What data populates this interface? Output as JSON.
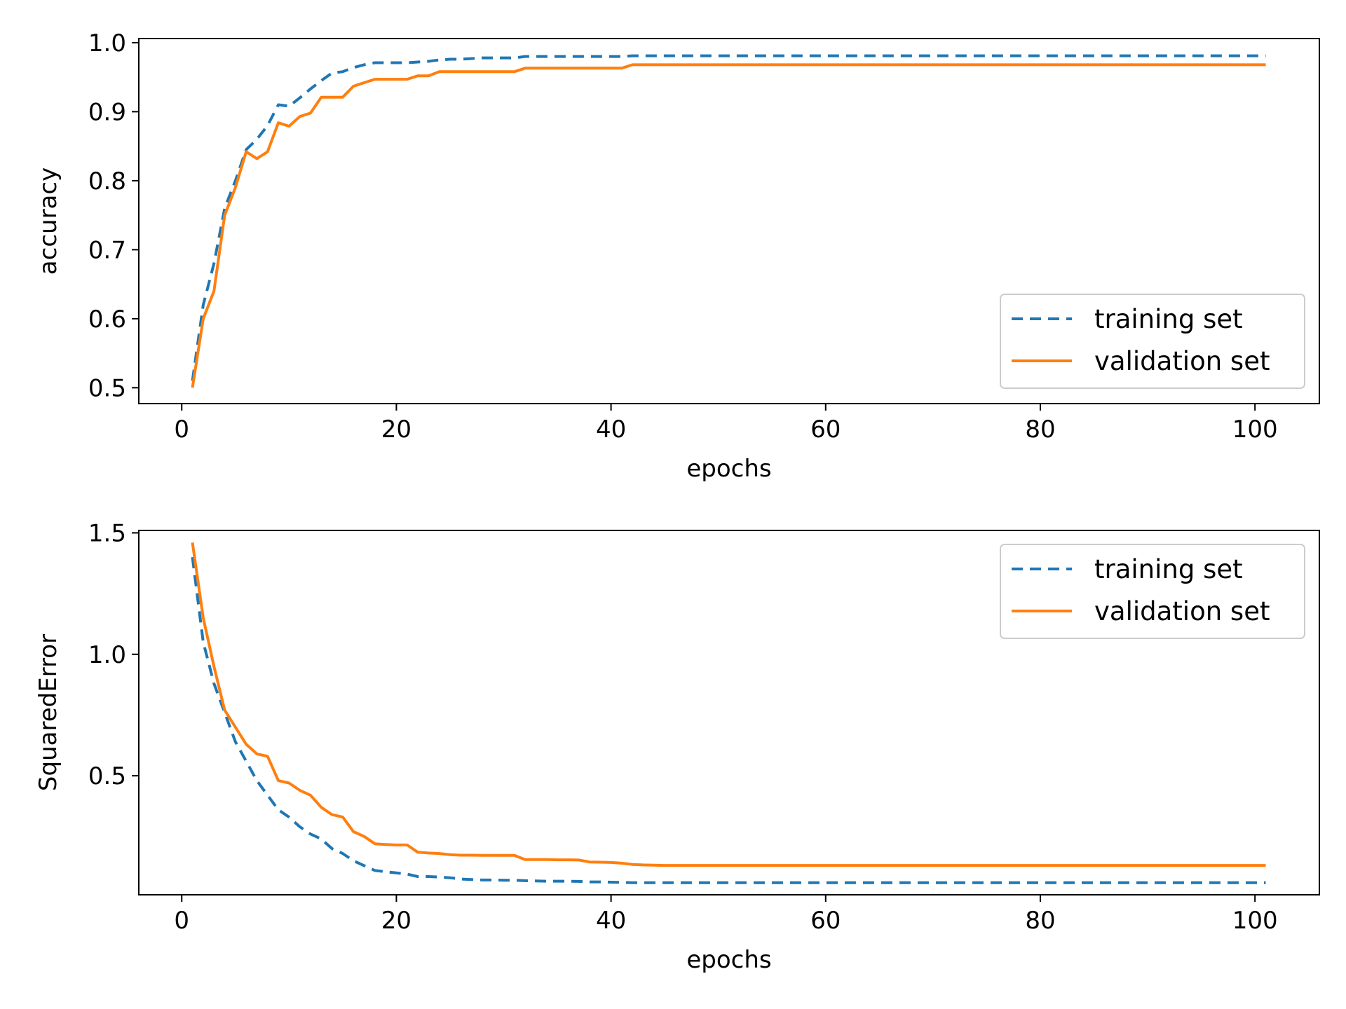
{
  "colors": {
    "training": "#1f77b4",
    "validation": "#ff7f0e"
  },
  "chart_data": [
    {
      "type": "line",
      "xlabel": "epochs",
      "ylabel": "accuracy",
      "xlim": [
        -4,
        106
      ],
      "ylim": [
        0.477,
        1.006
      ],
      "xticks": [
        0,
        20,
        40,
        60,
        80,
        100
      ],
      "xtick_labels": [
        "0",
        "20",
        "40",
        "60",
        "80",
        "100"
      ],
      "yticks": [
        0.5,
        0.6,
        0.7,
        0.8,
        0.9,
        1.0
      ],
      "ytick_labels": [
        "0.5",
        "0.6",
        "0.7",
        "0.8",
        "0.9",
        "1.0"
      ],
      "grid": false,
      "legend_position": "lower-right",
      "x": [
        1,
        2,
        3,
        4,
        5,
        6,
        7,
        8,
        9,
        10,
        11,
        12,
        13,
        14,
        15,
        16,
        17,
        18,
        19,
        20,
        21,
        22,
        23,
        24,
        25,
        26,
        27,
        28,
        29,
        30,
        31,
        32,
        33,
        34,
        35,
        36,
        37,
        38,
        39,
        40,
        41,
        42,
        43,
        44,
        45,
        46,
        47,
        48,
        49,
        50,
        51,
        52,
        53,
        54,
        55,
        56,
        57,
        58,
        59,
        60,
        61,
        62,
        63,
        64,
        65,
        66,
        67,
        68,
        69,
        70,
        71,
        72,
        73,
        74,
        75,
        76,
        77,
        78,
        79,
        80,
        81,
        82,
        83,
        84,
        85,
        86,
        87,
        88,
        89,
        90,
        91,
        92,
        93,
        94,
        95,
        96,
        97,
        98,
        99,
        100,
        101
      ],
      "series": [
        {
          "name": "training set",
          "style": "dashed",
          "values": [
            0.51,
            0.62,
            0.68,
            0.76,
            0.8,
            0.845,
            0.86,
            0.88,
            0.91,
            0.908,
            0.92,
            0.933,
            0.945,
            0.956,
            0.958,
            0.964,
            0.968,
            0.971,
            0.971,
            0.971,
            0.971,
            0.972,
            0.973,
            0.975,
            0.976,
            0.976,
            0.977,
            0.978,
            0.978,
            0.978,
            0.978,
            0.98,
            0.98,
            0.98,
            0.98,
            0.98,
            0.98,
            0.98,
            0.98,
            0.98,
            0.98,
            0.981,
            0.981,
            0.981,
            0.981,
            0.981,
            0.981,
            0.981,
            0.981,
            0.981,
            0.981,
            0.981,
            0.981,
            0.981,
            0.981,
            0.981,
            0.981,
            0.981,
            0.981,
            0.981,
            0.981,
            0.981,
            0.981,
            0.981,
            0.981,
            0.981,
            0.981,
            0.981,
            0.981,
            0.981,
            0.981,
            0.981,
            0.981,
            0.981,
            0.981,
            0.981,
            0.981,
            0.981,
            0.981,
            0.981,
            0.981,
            0.981,
            0.981,
            0.981,
            0.981,
            0.981,
            0.981,
            0.981,
            0.981,
            0.981,
            0.981,
            0.981,
            0.981,
            0.981,
            0.981,
            0.981,
            0.981,
            0.981,
            0.981,
            0.981,
            0.981
          ]
        },
        {
          "name": "validation set",
          "style": "solid",
          "values": [
            0.5,
            0.6,
            0.64,
            0.75,
            0.79,
            0.842,
            0.832,
            0.842,
            0.884,
            0.879,
            0.893,
            0.898,
            0.921,
            0.921,
            0.921,
            0.937,
            0.942,
            0.947,
            0.947,
            0.947,
            0.947,
            0.952,
            0.952,
            0.958,
            0.958,
            0.958,
            0.958,
            0.958,
            0.958,
            0.958,
            0.958,
            0.963,
            0.963,
            0.963,
            0.963,
            0.963,
            0.963,
            0.963,
            0.963,
            0.963,
            0.963,
            0.968,
            0.968,
            0.968,
            0.968,
            0.968,
            0.968,
            0.968,
            0.968,
            0.968,
            0.968,
            0.968,
            0.968,
            0.968,
            0.968,
            0.968,
            0.968,
            0.968,
            0.968,
            0.968,
            0.968,
            0.968,
            0.968,
            0.968,
            0.968,
            0.968,
            0.968,
            0.968,
            0.968,
            0.968,
            0.968,
            0.968,
            0.968,
            0.968,
            0.968,
            0.968,
            0.968,
            0.968,
            0.968,
            0.968,
            0.968,
            0.968,
            0.968,
            0.968,
            0.968,
            0.968,
            0.968,
            0.968,
            0.968,
            0.968,
            0.968,
            0.968,
            0.968,
            0.968,
            0.968,
            0.968,
            0.968,
            0.968,
            0.968,
            0.968,
            0.968
          ]
        }
      ]
    },
    {
      "type": "line",
      "xlabel": "epochs",
      "ylabel": "SquaredError",
      "xlim": [
        -4,
        106
      ],
      "ylim": [
        0.01,
        1.51
      ],
      "xticks": [
        0,
        20,
        40,
        60,
        80,
        100
      ],
      "xtick_labels": [
        "0",
        "20",
        "40",
        "60",
        "80",
        "100"
      ],
      "yticks": [
        0.5,
        1.0,
        1.5
      ],
      "ytick_labels": [
        "0.5",
        "1.0",
        "1.5"
      ],
      "grid": false,
      "legend_position": "upper-right",
      "x": [
        1,
        2,
        3,
        4,
        5,
        6,
        7,
        8,
        9,
        10,
        11,
        12,
        13,
        14,
        15,
        16,
        17,
        18,
        19,
        20,
        21,
        22,
        23,
        24,
        25,
        26,
        27,
        28,
        29,
        30,
        31,
        32,
        33,
        34,
        35,
        36,
        37,
        38,
        39,
        40,
        41,
        42,
        43,
        44,
        45,
        46,
        47,
        48,
        49,
        50,
        51,
        52,
        53,
        54,
        55,
        56,
        57,
        58,
        59,
        60,
        61,
        62,
        63,
        64,
        65,
        66,
        67,
        68,
        69,
        70,
        71,
        72,
        73,
        74,
        75,
        76,
        77,
        78,
        79,
        80,
        81,
        82,
        83,
        84,
        85,
        86,
        87,
        88,
        89,
        90,
        91,
        92,
        93,
        94,
        95,
        96,
        97,
        98,
        99,
        100,
        101
      ],
      "series": [
        {
          "name": "training set",
          "style": "dashed",
          "values": [
            1.4,
            1.05,
            0.88,
            0.76,
            0.64,
            0.56,
            0.48,
            0.42,
            0.36,
            0.33,
            0.29,
            0.26,
            0.24,
            0.2,
            0.18,
            0.15,
            0.13,
            0.11,
            0.105,
            0.1,
            0.095,
            0.085,
            0.085,
            0.083,
            0.08,
            0.075,
            0.073,
            0.071,
            0.071,
            0.07,
            0.07,
            0.068,
            0.067,
            0.066,
            0.066,
            0.066,
            0.065,
            0.063,
            0.063,
            0.062,
            0.061,
            0.06,
            0.06,
            0.06,
            0.06,
            0.06,
            0.06,
            0.06,
            0.06,
            0.06,
            0.06,
            0.06,
            0.06,
            0.06,
            0.06,
            0.06,
            0.06,
            0.06,
            0.06,
            0.06,
            0.06,
            0.06,
            0.06,
            0.06,
            0.06,
            0.06,
            0.06,
            0.06,
            0.06,
            0.06,
            0.06,
            0.06,
            0.06,
            0.06,
            0.06,
            0.06,
            0.06,
            0.06,
            0.06,
            0.06,
            0.06,
            0.06,
            0.06,
            0.06,
            0.06,
            0.06,
            0.06,
            0.06,
            0.06,
            0.06,
            0.06,
            0.06,
            0.06,
            0.06,
            0.06,
            0.06,
            0.06,
            0.06,
            0.06,
            0.06,
            0.06
          ]
        },
        {
          "name": "validation set",
          "style": "solid",
          "values": [
            1.46,
            1.15,
            0.95,
            0.77,
            0.7,
            0.63,
            0.59,
            0.58,
            0.48,
            0.47,
            0.44,
            0.42,
            0.37,
            0.34,
            0.33,
            0.27,
            0.25,
            0.22,
            0.217,
            0.215,
            0.215,
            0.185,
            0.182,
            0.18,
            0.175,
            0.173,
            0.173,
            0.172,
            0.172,
            0.172,
            0.172,
            0.155,
            0.155,
            0.155,
            0.154,
            0.154,
            0.153,
            0.145,
            0.144,
            0.143,
            0.14,
            0.135,
            0.133,
            0.132,
            0.131,
            0.131,
            0.131,
            0.131,
            0.131,
            0.131,
            0.131,
            0.131,
            0.131,
            0.131,
            0.131,
            0.131,
            0.131,
            0.131,
            0.131,
            0.131,
            0.131,
            0.131,
            0.131,
            0.131,
            0.131,
            0.131,
            0.131,
            0.131,
            0.131,
            0.131,
            0.131,
            0.131,
            0.131,
            0.131,
            0.131,
            0.131,
            0.131,
            0.131,
            0.131,
            0.131,
            0.131,
            0.131,
            0.131,
            0.131,
            0.131,
            0.131,
            0.131,
            0.131,
            0.131,
            0.131,
            0.131,
            0.131,
            0.131,
            0.131,
            0.131,
            0.131,
            0.131,
            0.131,
            0.131,
            0.131,
            0.131
          ]
        }
      ]
    }
  ]
}
